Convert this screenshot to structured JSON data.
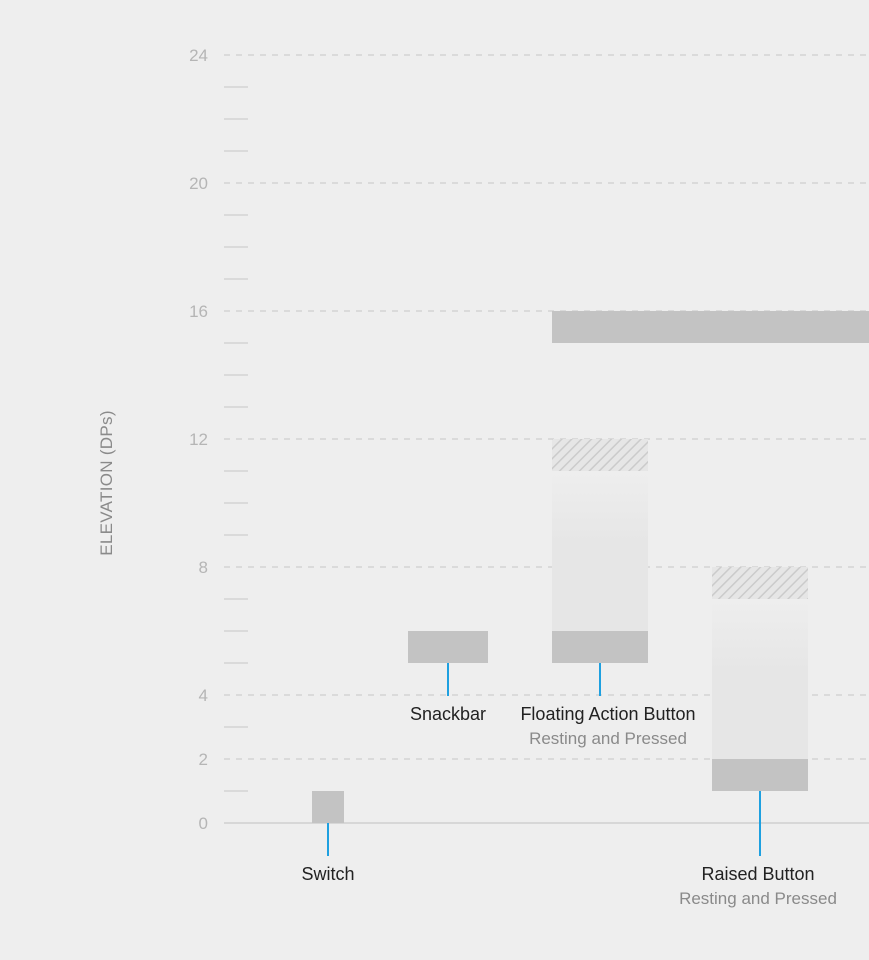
{
  "chart_data": {
    "type": "bar",
    "ylabel": "ELEVATION (DPs)",
    "xlabel": "",
    "title": "",
    "ylim": [
      0,
      24
    ],
    "yticks": [
      0,
      2,
      4,
      8,
      12,
      16,
      20,
      24
    ],
    "grid": true,
    "colors": {
      "bar": "#c3c3c3",
      "range_fill": "#e6e6e6",
      "hatch": "#cfcfcf",
      "connector": "#1ea0e0",
      "tick_label": "#b5b5b5",
      "category_label": "#222222",
      "sublabel": "#8a8a8a"
    },
    "items": [
      {
        "id": "switch",
        "label": "Switch",
        "sublabel": "",
        "resting": 1,
        "pressed": null
      },
      {
        "id": "snackbar",
        "label": "Snackbar",
        "sublabel": "",
        "resting": 6,
        "pressed": null
      },
      {
        "id": "fab",
        "label": "Floating Action Button",
        "sublabel": "Resting and Pressed",
        "resting": 6,
        "pressed": 12
      },
      {
        "id": "raised",
        "label": "Raised Button",
        "sublabel": "Resting and Pressed",
        "resting": 2,
        "pressed": 8
      },
      {
        "id": "cutoff",
        "label": "",
        "sublabel": "",
        "resting": 16,
        "pressed": null
      }
    ]
  }
}
